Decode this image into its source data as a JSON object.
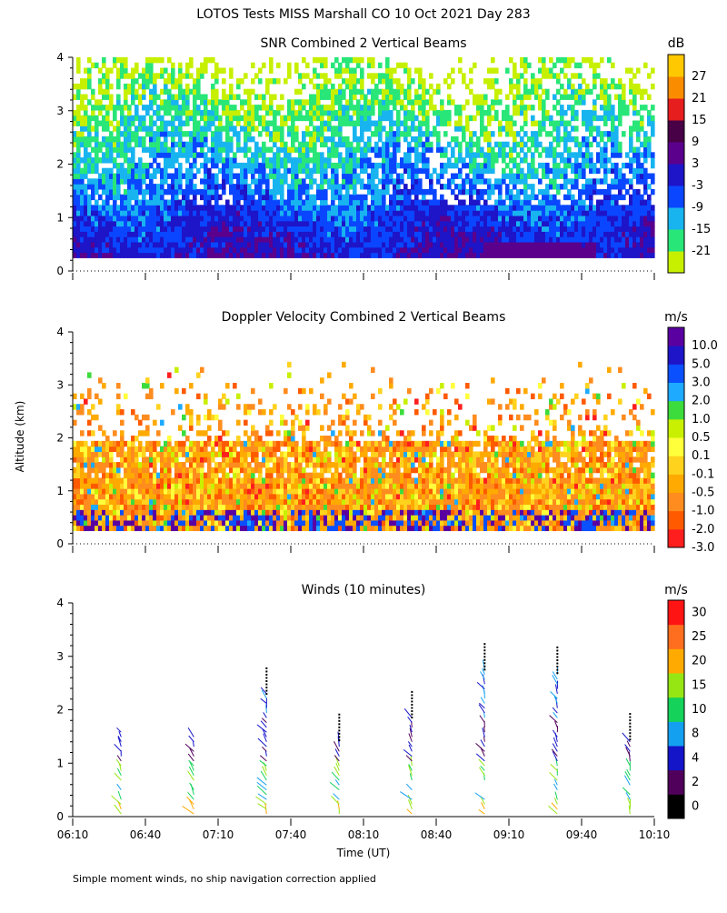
{
  "page": {
    "title": "LOTOS Tests MISS Marshall CO  10 Oct 2021 Day 283",
    "y_axis_label": "Altitude (km)",
    "x_axis_label": "Time (UT)",
    "footnote": "Simple moment winds, no ship navigation correction applied"
  },
  "colors": {
    "snr": [
      "#c6f000",
      "#28e678",
      "#18b4f0",
      "#0a46ff",
      "#1e14c8",
      "#5a008c",
      "#480046",
      "#e61e1e",
      "#fa8c00",
      "#ffc800"
    ],
    "velocity": [
      "#ff1e1e",
      "#ff5a00",
      "#ff8c1e",
      "#ffaa00",
      "#ffd21e",
      "#ffff3c",
      "#c8f000",
      "#3cdc3c",
      "#1eaaff",
      "#0a50ff",
      "#1e14c8",
      "#5a00a0",
      "#3c0028"
    ],
    "winds": [
      "#000000",
      "#50005a",
      "#1414c8",
      "#14a0f0",
      "#14d25a",
      "#96e614",
      "#ffaa00",
      "#ff6e1e",
      "#ff1414"
    ]
  },
  "chart_data": [
    {
      "type": "heatmap",
      "title": "SNR Combined 2 Vertical Beams",
      "unit": "dB",
      "colorbar_ticks": [
        "-21",
        "-15",
        "-9",
        "-3",
        "3",
        "9",
        "15",
        "21",
        "27"
      ],
      "x_ticks": [
        "06:10",
        "06:40",
        "07:10",
        "07:40",
        "08:10",
        "08:40",
        "09:10",
        "09:40",
        "10:10"
      ],
      "y_ticks": [
        "0",
        "1",
        "2",
        "3",
        "4"
      ],
      "xlim": [
        "06:10",
        "10:10"
      ],
      "ylim": [
        0,
        4
      ]
    },
    {
      "type": "heatmap",
      "title": "Doppler Velocity Combined 2 Vertical Beams",
      "unit": "m/s",
      "colorbar_ticks": [
        "-3.0",
        "-2.0",
        "-1.0",
        "-0.5",
        "-0.1",
        "0.1",
        "0.5",
        "1.0",
        "2.0",
        "3.0",
        "5.0",
        "10.0"
      ],
      "x_ticks": [
        "06:10",
        "06:40",
        "07:10",
        "07:40",
        "08:10",
        "08:40",
        "09:10",
        "09:40",
        "10:10"
      ],
      "y_ticks": [
        "0",
        "1",
        "2",
        "3",
        "4"
      ],
      "xlim": [
        "06:10",
        "10:10"
      ],
      "ylim": [
        0,
        4
      ]
    },
    {
      "type": "scatter",
      "title": "Winds (10 minutes)",
      "unit": "m/s",
      "colorbar_ticks": [
        "0",
        "2",
        "4",
        "8",
        "10",
        "15",
        "20",
        "25",
        "30"
      ],
      "x_ticks": [
        "06:10",
        "06:40",
        "07:10",
        "07:40",
        "08:10",
        "08:40",
        "09:10",
        "09:40",
        "10:10"
      ],
      "y_ticks": [
        "0",
        "1",
        "2",
        "3",
        "4"
      ],
      "xlim": [
        "06:10",
        "10:10"
      ],
      "ylim": [
        0,
        4
      ],
      "profile_times": [
        "06:30",
        "07:00",
        "07:30",
        "08:00",
        "08:30",
        "09:00",
        "09:30",
        "10:00"
      ]
    }
  ]
}
